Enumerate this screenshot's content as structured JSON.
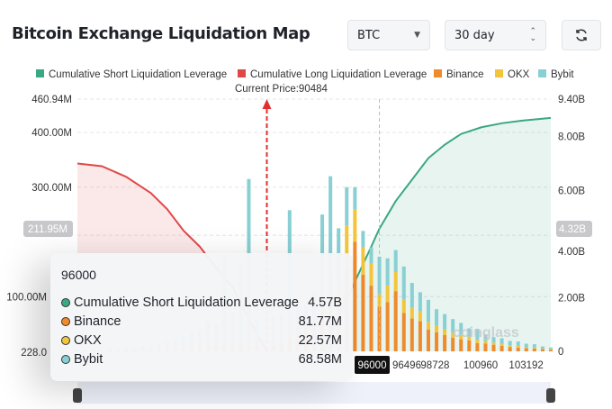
{
  "header": {
    "title": "Bitcoin Exchange Liquidation Map",
    "coin_select": "BTC",
    "range_select": "30 day",
    "refresh_icon": "refresh-icon"
  },
  "colors": {
    "short": "#3aa882",
    "long": "#e04848",
    "binance": "#ef8b2c",
    "okx": "#f3c53a",
    "bybit": "#88d0d4"
  },
  "tooltip": {
    "title": "96000",
    "rows": [
      {
        "label": "Cumulative Short Liquidation Leverage",
        "value": "4.57B",
        "color": "#3aa882"
      },
      {
        "label": "Binance",
        "value": "81.77M",
        "color": "#ef8b2c"
      },
      {
        "label": "OKX",
        "value": "22.57M",
        "color": "#f3c53a"
      },
      {
        "label": "Bybit",
        "value": "68.58M",
        "color": "#88d0d4"
      }
    ]
  },
  "chart_data": {
    "type": "bar",
    "title": "Bitcoin Exchange Liquidation Map",
    "legend": [
      "Cumulative Short Liquidation Leverage",
      "Cumulative Long Liquidation Leverage",
      "Binance",
      "OKX",
      "Bybit"
    ],
    "legend_position": "top",
    "current_price_label": "Current Price:90484",
    "current_price": 90484,
    "xlim": [
      81200,
      104400
    ],
    "x_ticks": [
      "96496",
      "98728",
      "100960",
      "103192"
    ],
    "x_highlight": "96000",
    "y_left_ticks": [
      "460.94M",
      "400.00M",
      "300.00M",
      "100.00M"
    ],
    "y_left_highlight": "211.95M",
    "y_left_bottom": "228.0",
    "y_left_max": 460.94,
    "y_right_ticks": [
      "9.40B",
      "8.00B",
      "6.00B",
      "4.00B",
      "2.00B",
      "0"
    ],
    "y_right_highlight": "4.32B",
    "y_right_max": 9.4,
    "watermark": "coinglass",
    "prices": [
      81200,
      81600,
      82000,
      82400,
      82800,
      83200,
      83600,
      84000,
      84400,
      84800,
      85200,
      85600,
      86000,
      86400,
      86800,
      87200,
      87600,
      88000,
      88400,
      88800,
      89200,
      89600,
      90000,
      90400,
      90800,
      91200,
      91600,
      92000,
      92400,
      92800,
      93200,
      93600,
      94000,
      94400,
      94800,
      95200,
      95600,
      96000,
      96400,
      96800,
      97200,
      97600,
      98000,
      98400,
      98800,
      99200,
      99600,
      100000,
      100400,
      100800,
      101200,
      101600,
      102000,
      102400,
      102800,
      103200,
      103600,
      104000,
      104400
    ],
    "series": [
      {
        "name": "Binance",
        "values": [
          1,
          1,
          2,
          1,
          2,
          2,
          3,
          2,
          3,
          3,
          4,
          5,
          6,
          5,
          8,
          6,
          10,
          9,
          12,
          8,
          14,
          10,
          12,
          0,
          10,
          14,
          18,
          20,
          25,
          40,
          60,
          90,
          80,
          150,
          200,
          140,
          120,
          81.77,
          90,
          110,
          70,
          60,
          55,
          40,
          35,
          30,
          25,
          22,
          20,
          15,
          14,
          12,
          10,
          8,
          7,
          6,
          5,
          4,
          3
        ]
      },
      {
        "name": "OKX",
        "values": [
          0,
          0,
          1,
          0,
          1,
          1,
          1,
          1,
          1,
          2,
          2,
          2,
          3,
          2,
          4,
          3,
          5,
          4,
          6,
          4,
          8,
          5,
          6,
          0,
          5,
          8,
          10,
          12,
          14,
          20,
          40,
          50,
          45,
          80,
          60,
          50,
          40,
          22.57,
          30,
          35,
          25,
          20,
          18,
          14,
          12,
          10,
          9,
          8,
          7,
          6,
          5,
          4,
          4,
          3,
          3,
          2,
          2,
          1,
          1
        ]
      },
      {
        "name": "Bybit",
        "values": [
          2,
          1,
          3,
          2,
          4,
          3,
          5,
          4,
          6,
          5,
          8,
          10,
          12,
          20,
          25,
          30,
          40,
          35,
          160,
          60,
          140,
          300,
          40,
          0,
          50,
          45,
          230,
          50,
          45,
          50,
          150,
          180,
          100,
          70,
          40,
          30,
          30,
          68.58,
          50,
          40,
          60,
          45,
          35,
          40,
          30,
          28,
          25,
          22,
          15,
          20,
          12,
          10,
          10,
          8,
          8,
          6,
          6,
          4,
          3
        ]
      },
      {
        "name": "Cumulative Long Liquidation Leverage",
        "x": [
          81200,
          82400,
          83600,
          84800,
          85600,
          86400,
          87200,
          88000,
          88800,
          89600,
          90484
        ],
        "values": [
          7.0,
          6.9,
          6.5,
          5.9,
          5.3,
          4.5,
          3.9,
          3.1,
          2.4,
          1.2,
          0
        ]
      },
      {
        "name": "Cumulative Short Liquidation Leverage",
        "x": [
          93300,
          94000,
          94800,
          95600,
          96000,
          96800,
          97600,
          98400,
          99200,
          100000,
          101000,
          102000,
          103000,
          104400
        ],
        "values": [
          0,
          1.3,
          2.6,
          3.9,
          4.57,
          5.6,
          6.4,
          7.2,
          7.7,
          8.1,
          8.35,
          8.5,
          8.6,
          8.7
        ]
      }
    ]
  }
}
